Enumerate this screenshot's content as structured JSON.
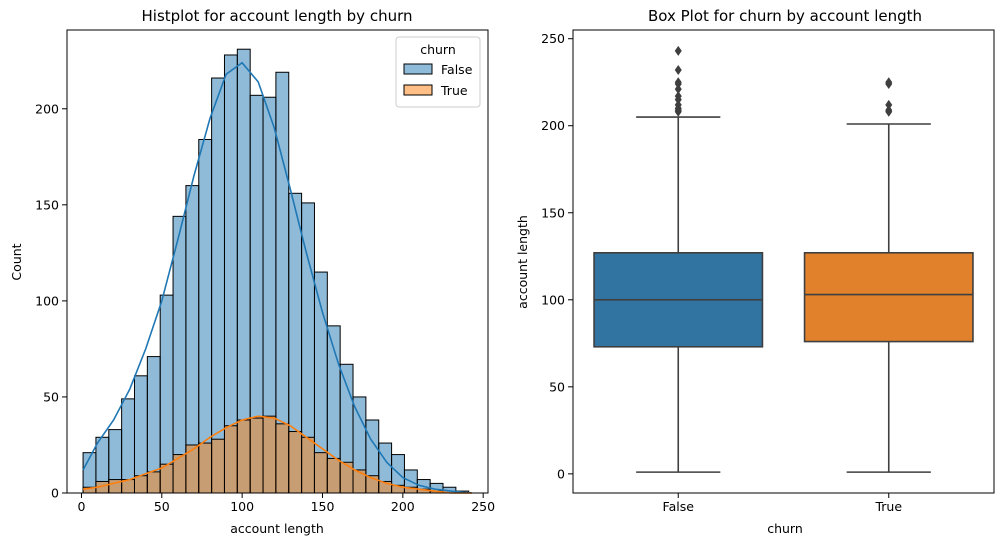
{
  "chart_data": [
    {
      "type": "histogram",
      "title": "Histplot for account length by churn",
      "xlabel": "account length",
      "ylabel": "Count",
      "xlim": [
        -9,
        253
      ],
      "ylim": [
        0,
        241
      ],
      "xticks": [
        0,
        50,
        100,
        150,
        200,
        250
      ],
      "yticks": [
        0,
        50,
        100,
        150,
        200
      ],
      "bin_edges": [
        1,
        9,
        17,
        25,
        33,
        41,
        49,
        57,
        65,
        73,
        81,
        89,
        97,
        105,
        113,
        121,
        129,
        137,
        145,
        153,
        161,
        169,
        177,
        185,
        193,
        201,
        209,
        217,
        225,
        233,
        241
      ],
      "legend": {
        "title": "churn",
        "position": "top-right"
      },
      "series": [
        {
          "name": "False",
          "color": "#1f77b4",
          "values": [
            21,
            29,
            33,
            49,
            61,
            71,
            103,
            144,
            160,
            184,
            216,
            228,
            231,
            207,
            206,
            219,
            156,
            151,
            115,
            87,
            67,
            50,
            38,
            26,
            20,
            12,
            7,
            5,
            3,
            1
          ],
          "kde_x": [
            1,
            10,
            20,
            30,
            40,
            50,
            60,
            70,
            80,
            90,
            100,
            110,
            120,
            130,
            140,
            150,
            160,
            170,
            180,
            190,
            200,
            210,
            220,
            230,
            243
          ],
          "kde_y": [
            12,
            26,
            38,
            54,
            75,
            100,
            132,
            165,
            195,
            218,
            224,
            214,
            190,
            158,
            125,
            94,
            67,
            45,
            28,
            16,
            8,
            4,
            2,
            1,
            0
          ]
        },
        {
          "name": "True",
          "color": "#ff7f0e",
          "values": [
            3,
            6,
            7,
            7,
            9,
            11,
            15,
            20,
            25,
            26,
            28,
            35,
            38,
            39,
            40,
            36,
            32,
            29,
            21,
            18,
            16,
            12,
            9,
            6,
            4,
            3,
            2,
            1,
            0,
            0
          ],
          "kde_x": [
            1,
            10,
            20,
            30,
            40,
            50,
            60,
            70,
            80,
            90,
            100,
            110,
            120,
            130,
            140,
            150,
            160,
            170,
            180,
            190,
            200,
            210,
            220,
            230,
            243
          ],
          "kde_y": [
            2,
            3,
            5,
            7,
            10,
            13,
            18,
            23,
            29,
            34,
            38,
            40,
            39,
            35,
            29,
            23,
            17,
            12,
            8,
            5,
            3,
            2,
            1,
            0,
            0
          ]
        }
      ]
    },
    {
      "type": "box",
      "title": "Box Plot for churn by account length",
      "xlabel": "churn",
      "ylabel": "account length",
      "ylim": [
        -11,
        255
      ],
      "yticks": [
        0,
        50,
        100,
        150,
        200,
        250
      ],
      "categories": [
        "False",
        "True"
      ],
      "boxes": [
        {
          "name": "False",
          "color": "#3274a1",
          "whisker_low": 1,
          "q1": 73,
          "median": 100,
          "q3": 127,
          "whisker_high": 205,
          "outliers": [
            208,
            209,
            210,
            212,
            215,
            217,
            221,
            224,
            225,
            232,
            243
          ]
        },
        {
          "name": "True",
          "color": "#e1812c",
          "whisker_low": 1,
          "q1": 76,
          "median": 103,
          "q3": 127,
          "whisker_high": 201,
          "outliers": [
            208,
            209,
            212,
            224,
            225
          ]
        }
      ]
    }
  ]
}
